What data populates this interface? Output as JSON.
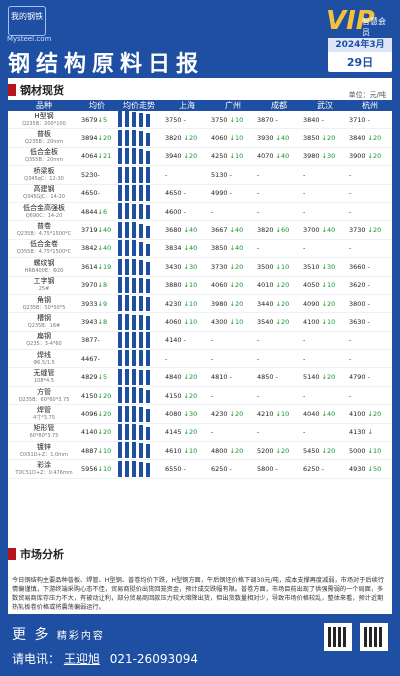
{
  "header": {
    "logo_text": "我的钢铁",
    "logo_site": "Mysteel.com",
    "vip_text": "VIP",
    "vip_sub": "智慧会员",
    "title": "钢结构原料日报",
    "year_month": "2024年3月",
    "day": "29日"
  },
  "section1": {
    "title": "钢材现货",
    "unit": "单位：元/吨"
  },
  "columns": [
    "品种",
    "均价",
    "均价走势",
    "上海",
    "广州",
    "成都",
    "武汉",
    "杭州"
  ],
  "rows": [
    {
      "name": "H型钢",
      "spec": "Q235B：200*100",
      "avg": "3679",
      "avg_chg": "↓5",
      "avg_dir": "dn",
      "trend": [
        18,
        16,
        15,
        14,
        13
      ],
      "sh": "3750",
      "sh_chg": "-",
      "sh_dir": "",
      "gz": "3750",
      "gz_chg": "↓10",
      "gz_dir": "dn",
      "cd": "3870",
      "cd_chg": "-",
      "cd_dir": "",
      "wh": "3840",
      "wh_chg": "-",
      "wh_dir": "",
      "hz": "3710",
      "hz_chg": "-",
      "hz_dir": ""
    },
    {
      "name": "普板",
      "spec": "Q235B：20mm",
      "avg": "3894",
      "avg_chg": "↓20",
      "avg_dir": "dn",
      "trend": [
        18,
        17,
        16,
        15,
        13
      ],
      "sh": "3820",
      "sh_chg": "↓20",
      "sh_dir": "dn",
      "gz": "4060",
      "gz_chg": "↓10",
      "gz_dir": "dn",
      "cd": "3930",
      "cd_chg": "↓40",
      "cd_dir": "dn",
      "wh": "3850",
      "wh_chg": "↓20",
      "wh_dir": "dn",
      "hz": "3840",
      "hz_chg": "↓20",
      "hz_dir": "dn"
    },
    {
      "name": "低合金板",
      "spec": "Q355B：20mm",
      "avg": "4064",
      "avg_chg": "↓21",
      "avg_dir": "dn",
      "trend": [
        18,
        17,
        16,
        15,
        13
      ],
      "sh": "3940",
      "sh_chg": "↓20",
      "sh_dir": "dn",
      "gz": "4250",
      "gz_chg": "↓10",
      "gz_dir": "dn",
      "cd": "4070",
      "cd_chg": "↓40",
      "cd_dir": "dn",
      "wh": "3980",
      "wh_chg": "↓30",
      "wh_dir": "dn",
      "hz": "3900",
      "hz_chg": "↓20",
      "hz_dir": "dn"
    },
    {
      "name": "桥梁板",
      "spec": "Q345qC：12-30",
      "avg": "5230",
      "avg_chg": "-",
      "avg_dir": "",
      "trend": [
        16,
        16,
        16,
        16,
        16
      ],
      "sh": "-",
      "sh_chg": "",
      "sh_dir": "",
      "gz": "5130",
      "gz_chg": "-",
      "gz_dir": "",
      "cd": "-",
      "cd_chg": "",
      "cd_dir": "",
      "wh": "-",
      "wh_chg": "",
      "wh_dir": "",
      "hz": "-",
      "hz_chg": "",
      "hz_dir": ""
    },
    {
      "name": "高建钢",
      "spec": "Q345GJC：14-20",
      "avg": "4650",
      "avg_chg": "-",
      "avg_dir": "",
      "trend": [
        16,
        16,
        16,
        16,
        16
      ],
      "sh": "4650",
      "sh_chg": "-",
      "sh_dir": "",
      "gz": "4990",
      "gz_chg": "-",
      "gz_dir": "",
      "cd": "-",
      "cd_chg": "",
      "cd_dir": "",
      "wh": "-",
      "wh_chg": "",
      "wh_dir": "",
      "hz": "-",
      "hz_chg": "",
      "hz_dir": ""
    },
    {
      "name": "低合金高强板",
      "spec": "Q690C：14-20",
      "avg": "4844",
      "avg_chg": "↓6",
      "avg_dir": "dn",
      "trend": [
        17,
        16,
        15,
        15,
        14
      ],
      "sh": "4600",
      "sh_chg": "-",
      "sh_dir": "",
      "gz": "-",
      "gz_chg": "",
      "gz_dir": "",
      "cd": "-",
      "cd_chg": "",
      "cd_dir": "",
      "wh": "-",
      "wh_chg": "",
      "wh_dir": "",
      "hz": "-",
      "hz_chg": "",
      "hz_dir": ""
    },
    {
      "name": "普卷",
      "spec": "Q235B：4.75*1500*C",
      "avg": "3719",
      "avg_chg": "↓40",
      "avg_dir": "dn",
      "trend": [
        18,
        17,
        16,
        14,
        12
      ],
      "sh": "3680",
      "sh_chg": "↓40",
      "sh_dir": "dn",
      "gz": "3667",
      "gz_chg": "↓40",
      "gz_dir": "dn",
      "cd": "3820",
      "cd_chg": "↓60",
      "cd_dir": "dn",
      "wh": "3700",
      "wh_chg": "↓40",
      "wh_dir": "dn",
      "hz": "3730",
      "hz_chg": "↓20",
      "hz_dir": "dn"
    },
    {
      "name": "低合金卷",
      "spec": "Q355B：4.75*1500*C",
      "avg": "3842",
      "avg_chg": "↓40",
      "avg_dir": "dn",
      "trend": [
        18,
        17,
        16,
        14,
        12
      ],
      "sh": "3834",
      "sh_chg": "↓40",
      "sh_dir": "dn",
      "gz": "3850",
      "gz_chg": "↓40",
      "gz_dir": "dn",
      "cd": "-",
      "cd_chg": "",
      "cd_dir": "",
      "wh": "-",
      "wh_chg": "",
      "wh_dir": "",
      "hz": "-",
      "hz_chg": "",
      "hz_dir": ""
    },
    {
      "name": "螺纹钢",
      "spec": "HRB400E：Φ20",
      "avg": "3614",
      "avg_chg": "↓19",
      "avg_dir": "dn",
      "trend": [
        18,
        17,
        16,
        15,
        13
      ],
      "sh": "3430",
      "sh_chg": "↓30",
      "sh_dir": "dn",
      "gz": "3730",
      "gz_chg": "↓20",
      "gz_dir": "dn",
      "cd": "3500",
      "cd_chg": "↓10",
      "cd_dir": "dn",
      "wh": "3510",
      "wh_chg": "↓30",
      "wh_dir": "dn",
      "hz": "3660",
      "hz_chg": "-",
      "hz_dir": ""
    },
    {
      "name": "工字钢",
      "spec": "25#",
      "avg": "3970",
      "avg_chg": "↓8",
      "avg_dir": "dn",
      "trend": [
        17,
        16,
        15,
        15,
        14
      ],
      "sh": "3880",
      "sh_chg": "↓10",
      "sh_dir": "dn",
      "gz": "4060",
      "gz_chg": "↓20",
      "gz_dir": "dn",
      "cd": "4010",
      "cd_chg": "↓20",
      "cd_dir": "dn",
      "wh": "4050",
      "wh_chg": "↓10",
      "wh_dir": "dn",
      "hz": "3620",
      "hz_chg": "-",
      "hz_dir": ""
    },
    {
      "name": "角钢",
      "spec": "Q235B：50*50*5",
      "avg": "3933",
      "avg_chg": "↓9",
      "avg_dir": "dn",
      "trend": [
        17,
        16,
        15,
        15,
        14
      ],
      "sh": "4230",
      "sh_chg": "↓10",
      "sh_dir": "dn",
      "gz": "3980",
      "gz_chg": "↓20",
      "gz_dir": "dn",
      "cd": "3440",
      "cd_chg": "↓20",
      "cd_dir": "dn",
      "wh": "4090",
      "wh_chg": "↓20",
      "wh_dir": "dn",
      "hz": "3800",
      "hz_chg": "-",
      "hz_dir": ""
    },
    {
      "name": "槽钢",
      "spec": "Q235B：16#",
      "avg": "3943",
      "avg_chg": "↓8",
      "avg_dir": "dn",
      "trend": [
        17,
        16,
        15,
        15,
        14
      ],
      "sh": "4060",
      "sh_chg": "↓10",
      "sh_dir": "dn",
      "gz": "4300",
      "gz_chg": "↓10",
      "gz_dir": "dn",
      "cd": "3540",
      "cd_chg": "↓20",
      "cd_dir": "dn",
      "wh": "4100",
      "wh_chg": "↓10",
      "wh_dir": "dn",
      "hz": "3630",
      "hz_chg": "-",
      "hz_dir": ""
    },
    {
      "name": "扁钢",
      "spec": "Q235：3-4*60",
      "avg": "3877",
      "avg_chg": "-",
      "avg_dir": "",
      "trend": [
        16,
        16,
        16,
        16,
        16
      ],
      "sh": "4140",
      "sh_chg": "-",
      "sh_dir": "",
      "gz": "-",
      "gz_chg": "",
      "gz_dir": "",
      "cd": "-",
      "cd_chg": "",
      "cd_dir": "",
      "wh": "-",
      "wh_chg": "",
      "wh_dir": "",
      "hz": "-",
      "hz_chg": "",
      "hz_dir": ""
    },
    {
      "name": "焊线",
      "spec": "Φ6.5/1.5",
      "avg": "4467",
      "avg_chg": "-",
      "avg_dir": "",
      "trend": [
        16,
        16,
        16,
        16,
        16
      ],
      "sh": "-",
      "sh_chg": "",
      "sh_dir": "",
      "gz": "-",
      "gz_chg": "",
      "gz_dir": "",
      "cd": "-",
      "cd_chg": "",
      "cd_dir": "",
      "wh": "-",
      "wh_chg": "",
      "wh_dir": "",
      "hz": "-",
      "hz_chg": "",
      "hz_dir": ""
    },
    {
      "name": "无缝管",
      "spec": "108*4.5",
      "avg": "4829",
      "avg_chg": "↓5",
      "avg_dir": "dn",
      "trend": [
        17,
        16,
        16,
        15,
        15
      ],
      "sh": "4840",
      "sh_chg": "↓20",
      "sh_dir": "dn",
      "gz": "4810",
      "gz_chg": "-",
      "gz_dir": "",
      "cd": "4850",
      "cd_chg": "-",
      "cd_dir": "",
      "wh": "5140",
      "wh_chg": "↓20",
      "wh_dir": "dn",
      "hz": "4790",
      "hz_chg": "-",
      "hz_dir": ""
    },
    {
      "name": "方管",
      "spec": "Q235B：60*60*3.75",
      "avg": "4150",
      "avg_chg": "↓20",
      "avg_dir": "dn",
      "trend": [
        18,
        17,
        16,
        15,
        13
      ],
      "sh": "4150",
      "sh_chg": "↓20",
      "sh_dir": "dn",
      "gz": "-",
      "gz_chg": "",
      "gz_dir": "",
      "cd": "-",
      "cd_chg": "",
      "cd_dir": "",
      "wh": "-",
      "wh_chg": "",
      "wh_dir": "",
      "hz": "-",
      "hz_chg": "",
      "hz_dir": ""
    },
    {
      "name": "焊管",
      "spec": "4寸*3.75",
      "avg": "4096",
      "avg_chg": "↓20",
      "avg_dir": "dn",
      "trend": [
        18,
        17,
        16,
        15,
        13
      ],
      "sh": "4080",
      "sh_chg": "↓30",
      "sh_dir": "dn",
      "gz": "4230",
      "gz_chg": "↓20",
      "gz_dir": "dn",
      "cd": "4210",
      "gz_x": "",
      "cd_chg": "↓10",
      "cd_dir": "dn",
      "wh": "4040",
      "wh_chg": "↓40",
      "wh_dir": "dn",
      "hz": "4100",
      "hz_chg": "↓20",
      "hz_dir": "dn"
    },
    {
      "name": "矩形管",
      "spec": "60*80*3.75",
      "avg": "4140",
      "avg_chg": "↓20",
      "avg_dir": "dn",
      "trend": [
        18,
        17,
        16,
        15,
        13
      ],
      "sh": "4145",
      "sh_chg": "↓20",
      "sh_dir": "dn",
      "gz": "-",
      "gz_chg": "",
      "gz_dir": "",
      "cd": "-",
      "cd_chg": "",
      "cd_dir": "",
      "wh": "-",
      "wh_chg": "",
      "wh_dir": "",
      "hz": "4130",
      "hz_chg": "↓",
      "hz_dir": "dn"
    },
    {
      "name": "镀锌",
      "spec": "DX51D+Z：1.0mm",
      "avg": "4887",
      "avg_chg": "↓10",
      "avg_dir": "dn",
      "trend": [
        17,
        16,
        16,
        15,
        14
      ],
      "sh": "4610",
      "sh_chg": "↓10",
      "sh_dir": "dn",
      "gz": "4800",
      "gz_chg": "↓20",
      "gz_dir": "dn",
      "cd": "5200",
      "cd_chg": "↓20",
      "cd_dir": "dn",
      "wh": "5450",
      "wh_chg": "↓20",
      "wh_dir": "dn",
      "hz": "5000",
      "hz_chg": "↓10",
      "hz_dir": "dn"
    },
    {
      "name": "彩涂",
      "spec": "TDC51D+Z：0.476mm",
      "avg": "5956",
      "avg_chg": "↓10",
      "avg_dir": "dn",
      "trend": [
        17,
        16,
        16,
        15,
        14
      ],
      "sh": "6550",
      "sh_chg": "-",
      "sh_dir": "",
      "gz": "6250",
      "gz_chg": "-",
      "gz_dir": "",
      "cd": "5800",
      "cd_chg": "-",
      "cd_dir": "",
      "wh": "6250",
      "wh_chg": "-",
      "wh_dir": "",
      "hz": "4930",
      "hz_chg": "↓50",
      "hz_dir": "dn"
    }
  ],
  "section2": {
    "title": "市场分析",
    "text": "今日钢结构主要品种普板、焊管、H型钢、普卷均价下跌，H型钢方面，午后钢坯价格下调30元/吨，成本支撑再度减弱，市场对于后续行情偏谨慎，下游终端采购心态不佳，贸易商挺价出货回笼资金，预计成交跌幅有限。普卷方面，市场目前出现了供强需弱的一个局面，多数贸易商库存压力不大，有被动让利，部分贸易商回款压力较大暗降出货，但出货数量相对少，导致市场价格较乱，整体来看，预计近期热轧板卷价格或将震荡偏弱运行。"
  },
  "footer": {
    "more": "更 多",
    "more_sub": "精彩内容",
    "tel_label": "请电讯：",
    "tel_name": "王迎旭",
    "tel_number": "021-26093094",
    "qr1_label": "",
    "qr2_label": ""
  },
  "colors": {
    "brand": "#1f4fa3",
    "up": "#d01818",
    "down": "#11932b",
    "accent": "#b5141d"
  }
}
